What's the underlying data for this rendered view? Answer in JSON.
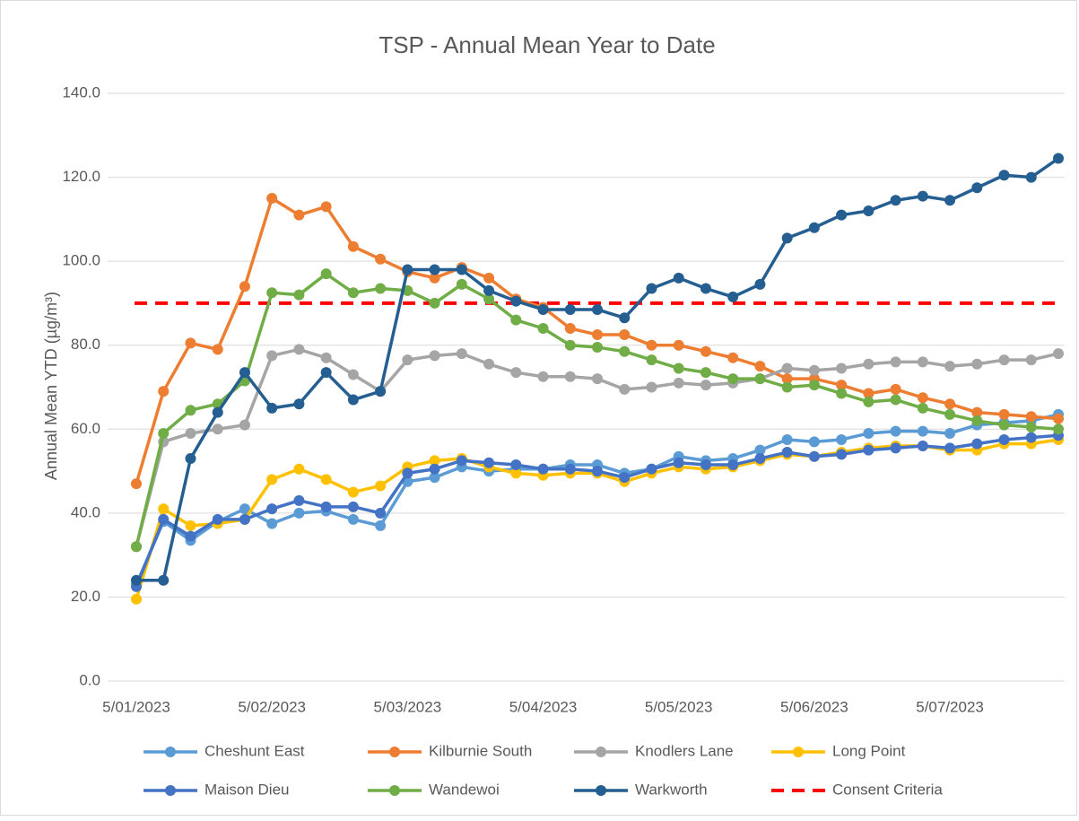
{
  "chart_data": {
    "type": "line",
    "title": "TSP - Annual Mean Year to Date",
    "y_label": "Annual Mean YTD (µg/m³)",
    "categories": [
      "5/01/2023",
      null,
      null,
      null,
      null,
      "5/02/2023",
      null,
      null,
      null,
      null,
      "5/03/2023",
      null,
      null,
      null,
      null,
      "5/04/2023",
      null,
      null,
      null,
      null,
      "5/05/2023",
      null,
      null,
      null,
      null,
      "5/06/2023",
      null,
      null,
      null,
      null,
      "5/07/2023",
      null,
      null,
      null,
      null
    ],
    "ylim": [
      0,
      140
    ],
    "yticks": [
      {
        "value": 0,
        "label": "0.0"
      },
      {
        "value": 20,
        "label": "20.0"
      },
      {
        "value": 40,
        "label": "40.0"
      },
      {
        "value": 60,
        "label": "60.0"
      },
      {
        "value": 80,
        "label": "80.0"
      },
      {
        "value": 100,
        "label": "100.0"
      },
      {
        "value": 120,
        "label": "120.0"
      },
      {
        "value": 140,
        "label": "140.0"
      }
    ],
    "grid": true,
    "legend": "bottom",
    "series": [
      {
        "name": "Cheshunt East",
        "color": "#5b9bd5",
        "values": [
          23,
          38,
          33.5,
          38,
          41,
          37.5,
          40,
          40.5,
          38.5,
          37,
          47.5,
          48.5,
          51,
          50,
          50.5,
          50.5,
          51.5,
          51.5,
          49.5,
          50.5,
          53.5,
          52.5,
          53,
          55,
          57.5,
          57,
          57.5,
          59,
          59.5,
          59.5,
          59,
          61,
          61.5,
          62,
          63.5
        ]
      },
      {
        "name": "Kilburnie South",
        "color": "#ed7d31",
        "values": [
          47,
          69,
          80.5,
          79,
          94,
          115,
          111,
          113,
          103.5,
          100.5,
          97.5,
          96,
          98.5,
          96,
          91,
          89,
          84,
          82.5,
          82.5,
          80,
          80,
          78.5,
          77,
          75,
          72,
          72,
          70.5,
          68.5,
          69.5,
          67.5,
          66,
          64,
          63.5,
          63,
          62.5
        ]
      },
      {
        "name": "Knodlers Lane",
        "color": "#a5a5a5",
        "values": [
          32,
          57,
          59,
          60,
          61,
          77.5,
          79,
          77,
          73,
          69,
          76.5,
          77.5,
          78,
          75.5,
          73.5,
          72.5,
          72.5,
          72,
          69.5,
          70,
          71,
          70.5,
          71,
          72,
          74.5,
          74,
          74.5,
          75.5,
          76,
          76,
          75,
          75.5,
          76.5,
          76.5,
          78
        ]
      },
      {
        "name": "Long Point",
        "color": "#ffc000",
        "values": [
          19.5,
          41,
          37,
          37.5,
          38.5,
          48,
          50.5,
          48,
          45,
          46.5,
          51,
          52.5,
          53,
          51,
          49.5,
          49,
          49.5,
          49.5,
          47.5,
          49.5,
          51,
          50.5,
          51,
          52.5,
          54,
          53.5,
          54.5,
          55.5,
          56,
          56,
          55,
          55,
          56.5,
          56.5,
          57.5
        ]
      },
      {
        "name": "Maison Dieu",
        "color": "#4472c4",
        "values": [
          22.5,
          38.5,
          34.5,
          38.5,
          38.5,
          41,
          43,
          41.5,
          41.5,
          40,
          49.5,
          50.5,
          52.5,
          52,
          51.5,
          50.5,
          50.5,
          50,
          48.5,
          50.5,
          52,
          51.5,
          51.5,
          53,
          54.5,
          53.5,
          54,
          55,
          55.5,
          56,
          55.5,
          56.5,
          57.5,
          58,
          58.5
        ]
      },
      {
        "name": "Wandewoi",
        "color": "#70ad47",
        "values": [
          32,
          59,
          64.5,
          66,
          71.5,
          92.5,
          92,
          97,
          92.5,
          93.5,
          93,
          90,
          94.5,
          91,
          86,
          84,
          80,
          79.5,
          78.5,
          76.5,
          74.5,
          73.5,
          72,
          72,
          70,
          70.5,
          68.5,
          66.5,
          67,
          65,
          63.5,
          62,
          61,
          60.5,
          60
        ]
      },
      {
        "name": "Warkworth",
        "color": "#255e91",
        "values": [
          24,
          24,
          53,
          64,
          73.5,
          65,
          66,
          73.5,
          67,
          69,
          98,
          98,
          98,
          93,
          90.5,
          88.5,
          88.5,
          88.5,
          86.5,
          93.5,
          96,
          93.5,
          91.5,
          94.5,
          105.5,
          108,
          111,
          112,
          114.5,
          115.5,
          114.5,
          117.5,
          120.5,
          120,
          124.5
        ]
      }
    ],
    "reference_line": {
      "name": "Consent Criteria",
      "value": 90,
      "color": "#ff0000",
      "dash": true
    }
  }
}
